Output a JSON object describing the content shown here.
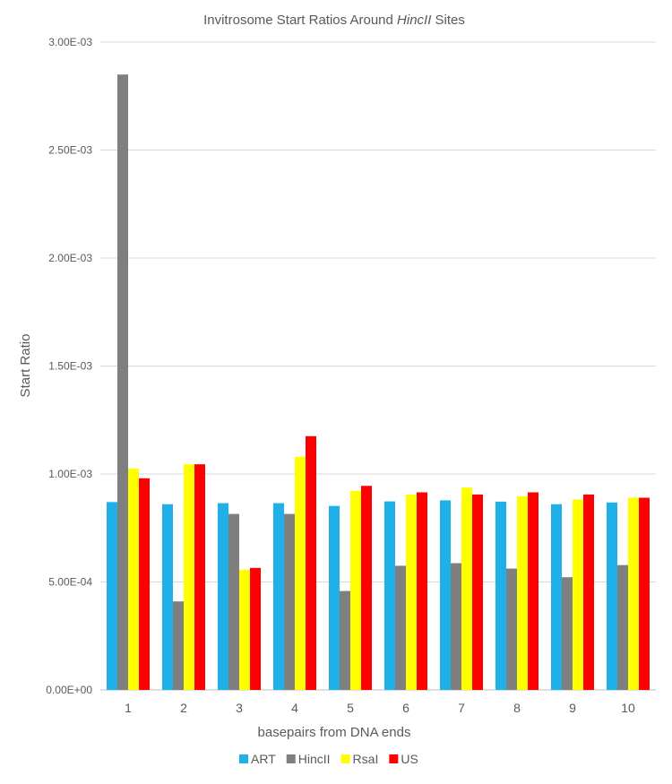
{
  "chart_data": {
    "type": "bar",
    "title_prefix": "Invitrosome  Start Ratios Around ",
    "title_italic": "HincII",
    "title_suffix": " Sites",
    "xlabel": "basepairs from DNA ends",
    "ylabel": "Start Ratio",
    "ylim": [
      0,
      0.003
    ],
    "yticks": [
      0,
      0.0005,
      0.001,
      0.0015,
      0.002,
      0.0025,
      0.003
    ],
    "ytick_labels": [
      "0.00E+00",
      "5.00E-04",
      "1.00E-03",
      "1.50E-03",
      "2.00E-03",
      "2.50E-03",
      "3.00E-03"
    ],
    "categories": [
      "1",
      "2",
      "3",
      "4",
      "5",
      "6",
      "7",
      "8",
      "9",
      "10"
    ],
    "grid": true,
    "legend_position": "bottom",
    "series": [
      {
        "name": "ART",
        "color": "#1FB0E8",
        "values": [
          0.00087,
          0.00086,
          0.000865,
          0.000865,
          0.000852,
          0.000873,
          0.000878,
          0.000872,
          0.00086,
          0.000868
        ]
      },
      {
        "name": "HincII",
        "color": "#7F7F7F",
        "values": [
          0.00285,
          0.00041,
          0.000815,
          0.000815,
          0.000458,
          0.000575,
          0.000587,
          0.000562,
          0.000522,
          0.000578
        ]
      },
      {
        "name": "RsaI",
        "color": "#FFFF00",
        "values": [
          0.001025,
          0.001045,
          0.000557,
          0.00108,
          0.000922,
          0.000905,
          0.000937,
          0.000897,
          0.000882,
          0.00089
        ]
      },
      {
        "name": "US",
        "color": "#FF0000",
        "values": [
          0.00098,
          0.001045,
          0.000565,
          0.001175,
          0.000945,
          0.000915,
          0.000905,
          0.000915,
          0.000905,
          0.00089
        ]
      }
    ]
  }
}
